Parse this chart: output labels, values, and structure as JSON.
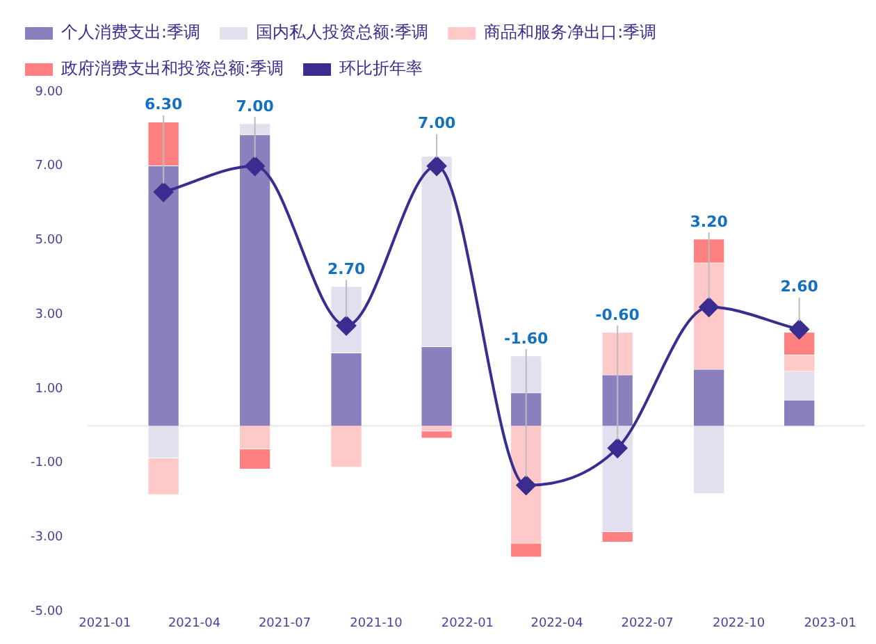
{
  "chart_data": {
    "type": "bar",
    "stacked": true,
    "legend": "top",
    "grid": false,
    "marker": "diamond",
    "x": [
      "2021-03",
      "2021-06",
      "2021-09",
      "2021-12",
      "2022-03",
      "2022-06",
      "2022-09",
      "2022-12"
    ],
    "xlim": [
      "2020-12-15",
      "2023-02-05"
    ],
    "xticks": [
      "2021-01",
      "2021-04",
      "2021-07",
      "2021-10",
      "2022-01",
      "2022-04",
      "2022-07",
      "2022-10",
      "2023-01"
    ],
    "ylim": [
      -5,
      9
    ],
    "yticks": [
      {
        "value": -5,
        "label": "-5.00"
      },
      {
        "value": -3,
        "label": "-3.00"
      },
      {
        "value": -1,
        "label": "-1.00"
      },
      {
        "value": 1,
        "label": "1.00"
      },
      {
        "value": 3,
        "label": "3.00"
      },
      {
        "value": 5,
        "label": "5.00"
      },
      {
        "value": 7,
        "label": "7.00"
      },
      {
        "value": 9,
        "label": "9.00"
      }
    ],
    "ref_lines": [
      {
        "axis": "y",
        "value": 0,
        "label": null,
        "color": "#eeeeee"
      }
    ],
    "series": [
      {
        "name": "个人消费支出:季调",
        "color": "#8b80bd",
        "values": [
          7.0,
          7.84,
          1.96,
          2.13,
          0.89,
          1.37,
          1.52,
          0.69
        ]
      },
      {
        "name": "国内私人投资总额:季调",
        "color": "#e2dfef",
        "values": [
          -0.86,
          0.3,
          1.79,
          5.13,
          0.99,
          -2.85,
          -1.82,
          0.78
        ]
      },
      {
        "name": "商品和服务净出口:季调",
        "color": "#ffc9c9",
        "values": [
          -0.99,
          -0.62,
          -1.11,
          -0.14,
          -3.16,
          1.15,
          2.87,
          0.44
        ]
      },
      {
        "name": "政府消费支出和投资总额:季调",
        "color": "#ff8080",
        "values": [
          1.18,
          -0.54,
          0,
          -0.19,
          -0.37,
          -0.28,
          0.64,
          0.61
        ]
      },
      {
        "name": "环比折年率",
        "type": "line",
        "color": "#3b2d8f",
        "values": [
          6.3,
          7.0,
          2.7,
          7.0,
          -1.6,
          -0.6,
          3.2,
          2.6
        ],
        "value_labels": [
          "6.30",
          "7.00",
          "2.70",
          "7.00",
          "-1.60",
          "-0.60",
          "3.20",
          "2.60"
        ]
      }
    ]
  }
}
